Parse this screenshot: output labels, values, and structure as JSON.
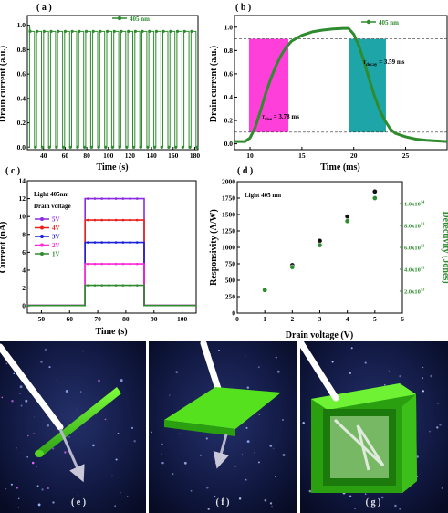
{
  "chart_data": [
    {
      "id": "a",
      "type": "line",
      "panel_label": "( a )",
      "xlabel": "Time (s)",
      "ylabel": "Drain current (a.u.)",
      "xlim": [
        25,
        183
      ],
      "ylim": [
        -0.02,
        1.08
      ],
      "xticks": [
        40,
        60,
        80,
        100,
        120,
        140,
        160,
        180
      ],
      "yticks": [
        0.0,
        0.2,
        0.4,
        0.6,
        0.8,
        1.0
      ],
      "ytick_labels": [
        "0.0",
        "0.2",
        "0.4",
        "0.6",
        "0.8",
        "1.0"
      ],
      "legend": "405 nm",
      "legend_position": "top-right",
      "series": [
        {
          "name": "405 nm",
          "color": "#2e8b2e",
          "pulse_period_s": 6.5,
          "pulse_on_s": 4.6,
          "first_pulse_start_s": 27,
          "cycles": 24,
          "on_level": 0.95,
          "off_level": 0.0
        }
      ]
    },
    {
      "id": "b",
      "type": "line",
      "panel_label": "( b )",
      "xlabel": "Time (ms)",
      "ylabel": "Drain current (a.u.)",
      "xlim": [
        8.5,
        29
      ],
      "ylim": [
        -0.05,
        1.1
      ],
      "xticks": [
        10,
        15,
        20,
        25
      ],
      "yticks": [
        0.0,
        0.2,
        0.4,
        0.6,
        0.8,
        1.0
      ],
      "ytick_labels": [
        "0.0",
        "0.2",
        "0.4",
        "0.6",
        "0.8",
        "1.0"
      ],
      "legend": "405 nm",
      "legend_position": "top-right",
      "dashed_levels": [
        0.1,
        0.9
      ],
      "rise_band": [
        9.9,
        13.7
      ],
      "decay_band": [
        19.5,
        23.1
      ],
      "rise_color": "#ff3fd9",
      "decay_color": "#1ea5a8",
      "rise_symbol": "τ",
      "rise_subscript": "rise",
      "rise_value": " = 3.78 ms",
      "decay_symbol": "τ",
      "decay_subscript": "decay",
      "decay_value": " = 3.59 ms",
      "series": [
        {
          "name": "405 nm",
          "color": "#2e8b2e",
          "points": [
            [
              8.5,
              0.02
            ],
            [
              9.5,
              0.02
            ],
            [
              10.0,
              0.05
            ],
            [
              10.5,
              0.14
            ],
            [
              11.0,
              0.28
            ],
            [
              11.5,
              0.43
            ],
            [
              12.0,
              0.56
            ],
            [
              12.5,
              0.67
            ],
            [
              13.0,
              0.76
            ],
            [
              13.5,
              0.83
            ],
            [
              14.0,
              0.88
            ],
            [
              15.0,
              0.93
            ],
            [
              16.0,
              0.96
            ],
            [
              17.0,
              0.975
            ],
            [
              18.0,
              0.985
            ],
            [
              19.0,
              0.99
            ],
            [
              19.5,
              0.99
            ],
            [
              20.0,
              0.94
            ],
            [
              20.5,
              0.84
            ],
            [
              21.0,
              0.7
            ],
            [
              21.5,
              0.55
            ],
            [
              22.0,
              0.41
            ],
            [
              22.5,
              0.29
            ],
            [
              23.0,
              0.2
            ],
            [
              23.5,
              0.13
            ],
            [
              24.0,
              0.09
            ],
            [
              25.0,
              0.06
            ],
            [
              26.0,
              0.04
            ],
            [
              27.0,
              0.03
            ],
            [
              29.0,
              0.02
            ]
          ]
        }
      ]
    },
    {
      "id": "c",
      "type": "line",
      "panel_label": "( c )",
      "xlabel": "Time (s)",
      "ylabel": "Current (nA)",
      "xlim": [
        45,
        105
      ],
      "ylim": [
        -0.8,
        14
      ],
      "xticks": [
        50,
        60,
        70,
        80,
        90,
        100
      ],
      "yticks": [
        0,
        2,
        4,
        6,
        8,
        10,
        12,
        14
      ],
      "annotation_1": "Light 405nm",
      "annotation_2": "Drain voltage",
      "legend_position": "top-left",
      "on_window": [
        65.5,
        86.5
      ],
      "series": [
        {
          "name": "5V",
          "color": "#8a2be2",
          "on_value": 12.0,
          "off_value": 0.05
        },
        {
          "name": "4V",
          "color": "#e8231c",
          "on_value": 9.6,
          "off_value": 0.05
        },
        {
          "name": "3V",
          "color": "#1a22d8",
          "on_value": 7.1,
          "off_value": 0.05
        },
        {
          "name": "2V",
          "color": "#ff2ad4",
          "on_value": 4.7,
          "off_value": 0.05
        },
        {
          "name": "1V",
          "color": "#2e8b2e",
          "on_value": 2.3,
          "off_value": 0.05
        }
      ]
    },
    {
      "id": "d",
      "type": "scatter",
      "panel_label": "( d )",
      "xlabel": "Drain voltage (V)",
      "ylabel": "Responsivity (A/W)",
      "y2label": "Detectivity (Jones)",
      "annotation": "Light 405 nm",
      "xlim": [
        0,
        6
      ],
      "ylim": [
        0,
        2000
      ],
      "y2lim": [
        0,
        120000000000000.0
      ],
      "xticks": [
        0,
        1,
        2,
        3,
        4,
        5,
        6
      ],
      "yticks": [
        0,
        250,
        500,
        750,
        1000,
        1250,
        1500,
        1750,
        2000
      ],
      "y2ticks": [
        20000000000000.0,
        40000000000000.0,
        60000000000000.0,
        80000000000000.0,
        100000000000000.0
      ],
      "y2tick_labels": [
        {
          "mant": "2.0x10",
          "exp": "13"
        },
        {
          "mant": "4.0x10",
          "exp": "13"
        },
        {
          "mant": "6.0x10",
          "exp": "13"
        },
        {
          "mant": "8.0x10",
          "exp": "13"
        },
        {
          "mant": "1.0x10",
          "exp": "14"
        }
      ],
      "series": [
        {
          "name": "Responsivity",
          "axis": "left",
          "color": "#111111",
          "x": [
            1,
            2,
            3,
            4,
            5
          ],
          "y": [
            350,
            730,
            1100,
            1470,
            1850
          ]
        },
        {
          "name": "Detectivity",
          "axis": "right",
          "color": "#2e8b2e",
          "x": [
            1,
            2,
            3,
            4,
            5
          ],
          "y": [
            21000000000000.0,
            42000000000000.0,
            62000000000000.0,
            84000000000000.0,
            105000000000000.0
          ]
        }
      ]
    }
  ],
  "illustrations": [
    {
      "id": "e",
      "caption": "( e )",
      "shape": "nanowire"
    },
    {
      "id": "f",
      "caption": "( f )",
      "shape": "nanoribbon"
    },
    {
      "id": "g",
      "caption": "( g )",
      "shape": "nanotube"
    }
  ]
}
